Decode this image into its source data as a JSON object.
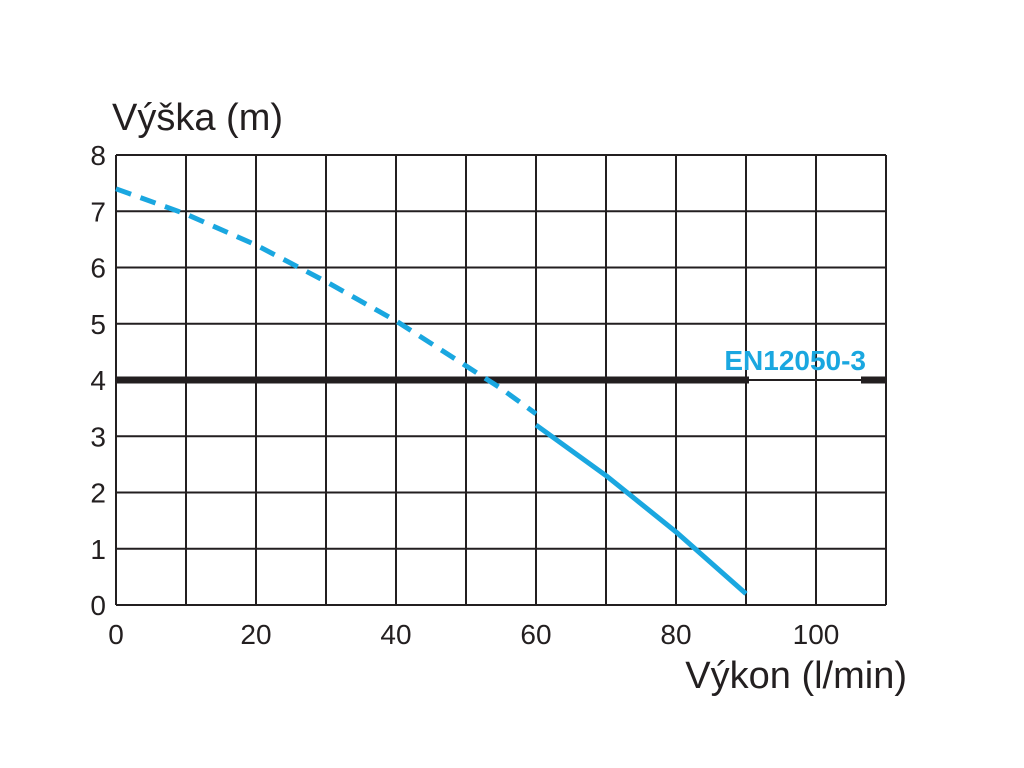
{
  "chart_data": {
    "type": "line",
    "ylabel": "Výška (m)",
    "xlabel": "Výkon (l/min)",
    "xlim": [
      0,
      110
    ],
    "ylim": [
      0,
      8
    ],
    "x_ticks": [
      0,
      10,
      20,
      30,
      40,
      50,
      60,
      70,
      80,
      90,
      100,
      110
    ],
    "x_tick_labels": [
      "0",
      "",
      "20",
      "",
      "40",
      "",
      "60",
      "",
      "80",
      "",
      "100",
      ""
    ],
    "y_ticks": [
      0,
      1,
      2,
      3,
      4,
      5,
      6,
      7,
      8
    ],
    "y_tick_labels": [
      "0",
      "1",
      "2",
      "3",
      "4",
      "5",
      "6",
      "7",
      "8"
    ],
    "grid": true,
    "series": [
      {
        "style": "dashed",
        "color": "#1aa7e0",
        "x": [
          0,
          10,
          20,
          30,
          40,
          50,
          55,
          60
        ],
        "y": [
          7.4,
          6.95,
          6.4,
          5.75,
          5.05,
          4.25,
          3.85,
          3.4
        ]
      },
      {
        "style": "solid",
        "color": "#1aa7e0",
        "x": [
          60,
          70,
          80,
          90
        ],
        "y": [
          3.2,
          2.3,
          1.3,
          0.2
        ]
      }
    ],
    "reference_line": {
      "y": 4,
      "label": "EN12050-3",
      "line_color": "#231f20",
      "label_color": "#1aa7e0"
    }
  }
}
